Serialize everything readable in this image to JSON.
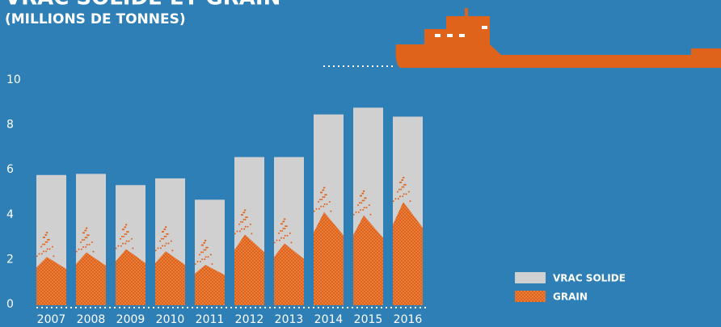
{
  "chart_data": {
    "type": "bar",
    "title": "VRAC SOLIDE ET GRAIN",
    "subtitle": "(MILLIONS DE TONNES)",
    "categories": [
      "2007",
      "2008",
      "2009",
      "2010",
      "2011",
      "2012",
      "2013",
      "2014",
      "2015",
      "2016"
    ],
    "series": [
      {
        "name": "VRAC SOLIDE",
        "color": "#d1d0d1",
        "values": [
          5.8,
          5.85,
          5.35,
          5.65,
          4.7,
          6.6,
          6.6,
          8.5,
          8.8,
          8.4
        ]
      },
      {
        "name": "GRAIN",
        "color": "#e0631b",
        "values": [
          2.15,
          2.35,
          2.5,
          2.4,
          1.8,
          3.15,
          2.75,
          4.15,
          4.0,
          4.6
        ]
      }
    ],
    "ylim": [
      0,
      10
    ],
    "yticks": [
      0,
      2,
      4,
      6,
      8,
      10
    ],
    "grid": false
  }
}
